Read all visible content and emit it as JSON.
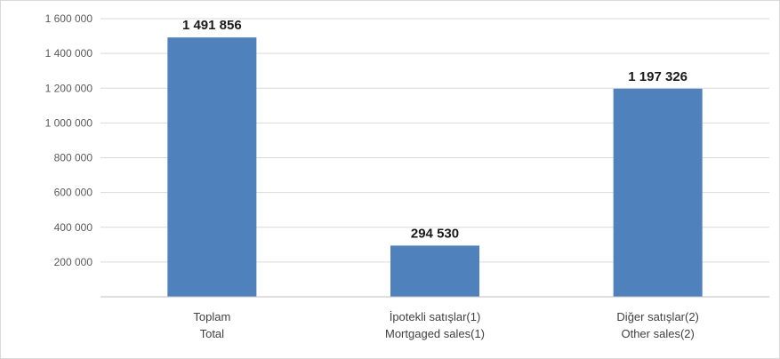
{
  "chart_data": {
    "type": "bar",
    "categories": [
      [
        "Toplam",
        "Total"
      ],
      [
        "İpotekli satışlar(1)",
        "Mortgaged sales(1)"
      ],
      [
        "Diğer satışlar(2)",
        "Other sales(2)"
      ]
    ],
    "values": [
      1491856,
      294530,
      1197326
    ],
    "data_labels": [
      "1 491 856",
      "294 530",
      "1 197 326"
    ],
    "y_ticks": [
      200000,
      400000,
      600000,
      800000,
      1000000,
      1200000,
      1400000,
      1600000
    ],
    "y_tick_labels": [
      "200 000",
      "400 000",
      "600 000",
      "800 000",
      "1 000 000",
      "1 200 000",
      "1 400 000",
      "1 600 000"
    ],
    "ylim": [
      0,
      1600000
    ],
    "grid": true,
    "legend": "none",
    "title": "",
    "xlabel": "",
    "ylabel": "",
    "colors": {
      "bar": "#4f81bd",
      "grid": "#d9d9d9",
      "axis": "#bfbfbf"
    }
  }
}
